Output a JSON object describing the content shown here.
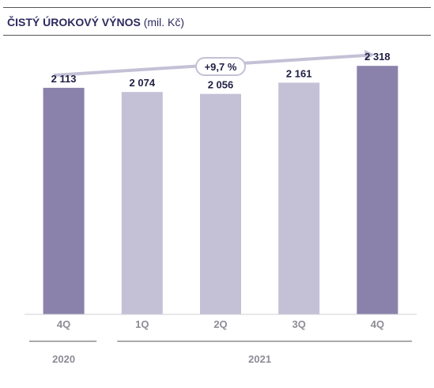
{
  "title": {
    "main": "ČISTÝ ÚROKOVÝ VÝNOS",
    "unit": "(mil. Kč)"
  },
  "colors": {
    "dark_bar": "#8a82aa",
    "light_bar": "#c4c0d6",
    "arrow": "#c4c0d6",
    "text": "#1f1f44",
    "axis_label": "#8c8c96"
  },
  "growth_label": "+9,7 %",
  "chart_data": {
    "type": "bar",
    "title": "ČISTÝ ÚROKOVÝ VÝNOS (mil. Kč)",
    "categories": [
      "4Q",
      "1Q",
      "2Q",
      "3Q",
      "4Q"
    ],
    "values": [
      2113,
      2074,
      2056,
      2161,
      2318
    ],
    "value_labels": [
      "2 113",
      "2 074",
      "2 056",
      "2 161",
      "2 318"
    ],
    "bar_styles": [
      "dark",
      "light",
      "light",
      "light",
      "dark"
    ],
    "groups": [
      {
        "label": "2020",
        "start": 0,
        "end": 0
      },
      {
        "label": "2021",
        "start": 1,
        "end": 4
      }
    ],
    "xlabel": "",
    "ylabel": "",
    "ylim": [
      0,
      2600
    ],
    "grid": false,
    "legend": "none"
  }
}
